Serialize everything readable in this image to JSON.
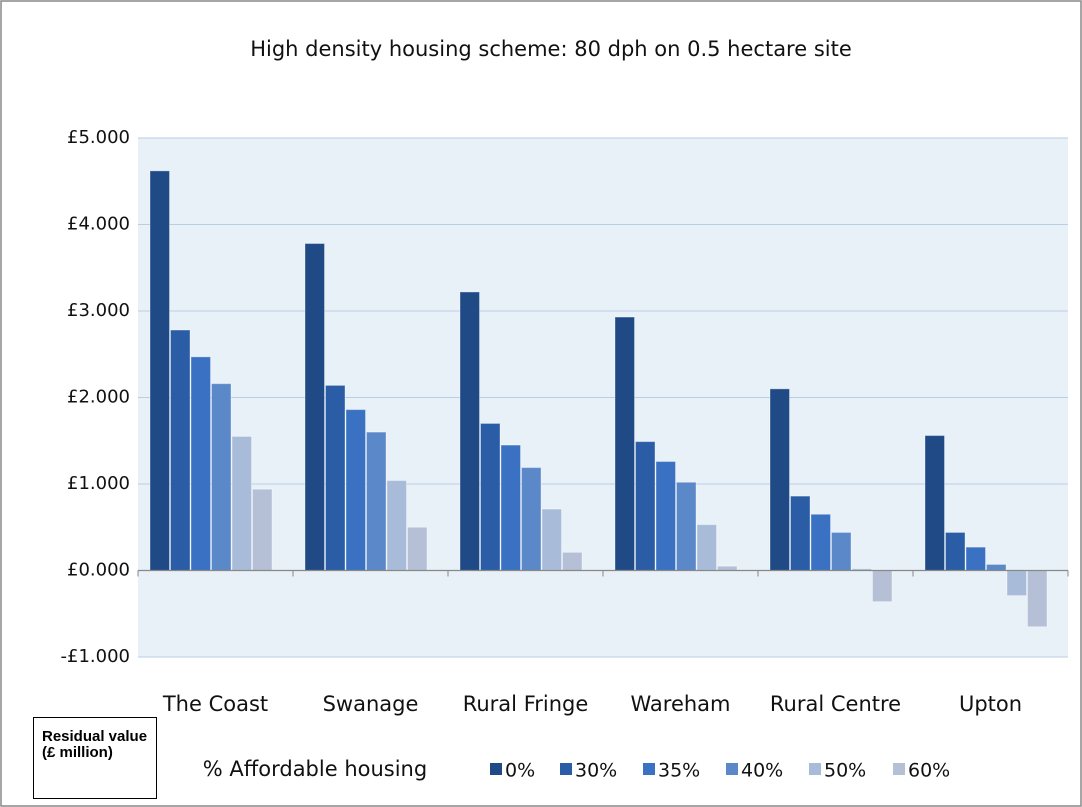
{
  "chart_data": {
    "type": "bar",
    "title": "High density housing scheme: 80 dph on 0.5 hectare site",
    "y_label": "Residual value (£ million)",
    "legend_title": "% Affordable housing",
    "categories": [
      "The Coast",
      "Swanage",
      "Rural Fringe",
      "Wareham",
      "Rural Centre",
      "Upton"
    ],
    "series": [
      {
        "name": "0%",
        "color": "#1f4a86",
        "values": [
          4.62,
          3.78,
          3.22,
          2.93,
          2.1,
          1.56
        ]
      },
      {
        "name": "30%",
        "color": "#2a5da6",
        "values": [
          2.78,
          2.14,
          1.7,
          1.49,
          0.86,
          0.44
        ]
      },
      {
        "name": "35%",
        "color": "#3a71c2",
        "values": [
          2.47,
          1.86,
          1.45,
          1.26,
          0.65,
          0.27
        ]
      },
      {
        "name": "40%",
        "color": "#5b88c9",
        "values": [
          2.16,
          1.6,
          1.19,
          1.02,
          0.44,
          0.07
        ]
      },
      {
        "name": "50%",
        "color": "#a8bcda",
        "values": [
          1.55,
          1.04,
          0.71,
          0.53,
          0.02,
          -0.29
        ]
      },
      {
        "name": "60%",
        "color": "#b5c0d6",
        "values": [
          0.94,
          0.5,
          0.21,
          0.05,
          -0.36,
          -0.65
        ]
      }
    ],
    "ylim": [
      -1,
      5
    ],
    "yticks": [
      {
        "value": 5,
        "label": "£5.000"
      },
      {
        "value": 4,
        "label": "£4.000"
      },
      {
        "value": 3,
        "label": "£3.000"
      },
      {
        "value": 2,
        "label": "£2.000"
      },
      {
        "value": 1,
        "label": "£1.000"
      },
      {
        "value": 0,
        "label": "£0.000"
      },
      {
        "value": -1,
        "label": "-£1.000"
      }
    ],
    "grid": true
  }
}
